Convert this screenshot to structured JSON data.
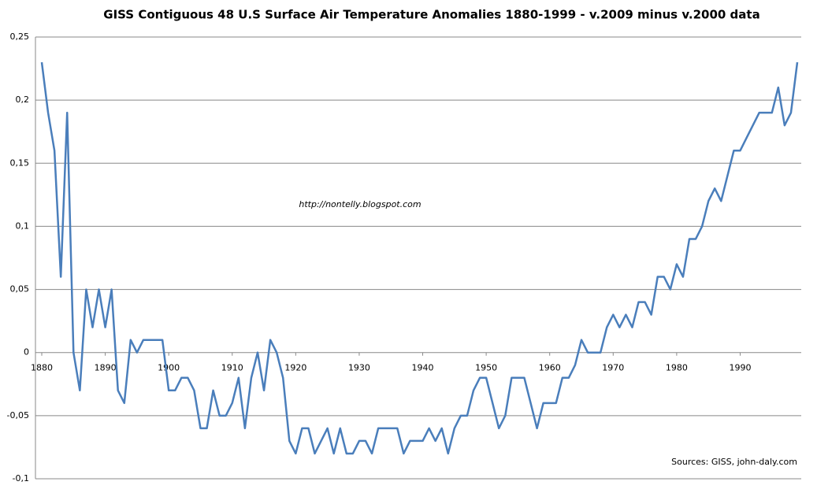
{
  "chart_data": {
    "type": "line",
    "title": "GISS Contiguous 48 U.S Surface Air Temperature Anomalies 1880-1999 - v.2009 minus v.2000 data",
    "annotations": [
      "http://nontelly.blogspot.com",
      "Sources:  GISS, john-daly.com"
    ],
    "x": [
      1880,
      1881,
      1882,
      1883,
      1884,
      1885,
      1886,
      1887,
      1888,
      1889,
      1890,
      1891,
      1892,
      1893,
      1894,
      1895,
      1896,
      1897,
      1898,
      1899,
      1900,
      1901,
      1902,
      1903,
      1904,
      1905,
      1906,
      1907,
      1908,
      1909,
      1910,
      1911,
      1912,
      1913,
      1914,
      1915,
      1916,
      1917,
      1918,
      1919,
      1920,
      1921,
      1922,
      1923,
      1924,
      1925,
      1926,
      1927,
      1928,
      1929,
      1930,
      1931,
      1932,
      1933,
      1934,
      1935,
      1936,
      1937,
      1938,
      1939,
      1940,
      1941,
      1942,
      1943,
      1944,
      1945,
      1946,
      1947,
      1948,
      1949,
      1950,
      1951,
      1952,
      1953,
      1954,
      1955,
      1956,
      1957,
      1958,
      1959,
      1960,
      1961,
      1962,
      1963,
      1964,
      1965,
      1966,
      1967,
      1968,
      1969,
      1970,
      1971,
      1972,
      1973,
      1974,
      1975,
      1976,
      1977,
      1978,
      1979,
      1980,
      1981,
      1982,
      1983,
      1984,
      1985,
      1986,
      1987,
      1988,
      1989,
      1990,
      1991,
      1992,
      1993,
      1994,
      1995,
      1996,
      1997,
      1998,
      1999
    ],
    "series": [
      {
        "color": "#4a7ebb",
        "values": [
          0.23,
          0.19,
          0.16,
          0.06,
          0.19,
          0.0,
          -0.03,
          0.05,
          0.02,
          0.05,
          0.02,
          0.05,
          -0.03,
          -0.04,
          0.01,
          0.0,
          0.01,
          0.01,
          0.01,
          0.01,
          -0.03,
          -0.03,
          -0.02,
          -0.02,
          -0.03,
          -0.06,
          -0.06,
          -0.03,
          -0.05,
          -0.05,
          -0.04,
          -0.02,
          -0.06,
          -0.02,
          0.0,
          -0.03,
          0.01,
          0.0,
          -0.02,
          -0.07,
          -0.08,
          -0.06,
          -0.06,
          -0.08,
          -0.07,
          -0.06,
          -0.08,
          -0.06,
          -0.08,
          -0.08,
          -0.07,
          -0.07,
          -0.08,
          -0.06,
          -0.06,
          -0.06,
          -0.06,
          -0.08,
          -0.07,
          -0.07,
          -0.07,
          -0.06,
          -0.07,
          -0.06,
          -0.08,
          -0.06,
          -0.05,
          -0.05,
          -0.03,
          -0.02,
          -0.02,
          -0.04,
          -0.06,
          -0.05,
          -0.02,
          -0.02,
          -0.02,
          -0.04,
          -0.06,
          -0.04,
          -0.04,
          -0.04,
          -0.02,
          -0.02,
          -0.01,
          0.01,
          0.0,
          0.0,
          0.0,
          0.02,
          0.03,
          0.02,
          0.03,
          0.02,
          0.04,
          0.04,
          0.03,
          0.06,
          0.06,
          0.05,
          0.07,
          0.06,
          0.09,
          0.09,
          0.1,
          0.12,
          0.13,
          0.12,
          0.14,
          0.16,
          0.16,
          0.17,
          0.18,
          0.19,
          0.19,
          0.19,
          0.21,
          0.18,
          0.19,
          0.23
        ]
      }
    ],
    "xlim": [
      1880,
      1999
    ],
    "xticks": [
      1880,
      1890,
      1900,
      1910,
      1920,
      1930,
      1940,
      1950,
      1960,
      1970,
      1980,
      1990
    ],
    "ylim": [
      -0.1,
      0.25
    ],
    "yticks": [
      {
        "value": -0.1,
        "label": "-0,1"
      },
      {
        "value": -0.05,
        "label": "-0,05"
      },
      0,
      {
        "value": 0.05,
        "label": "0,05"
      },
      {
        "value": 0.1,
        "label": "0,1"
      },
      {
        "value": 0.15,
        "label": "0,15"
      },
      {
        "value": 0.2,
        "label": "0,2"
      },
      {
        "value": 0.25,
        "label": "0,25"
      }
    ],
    "grid": true
  }
}
